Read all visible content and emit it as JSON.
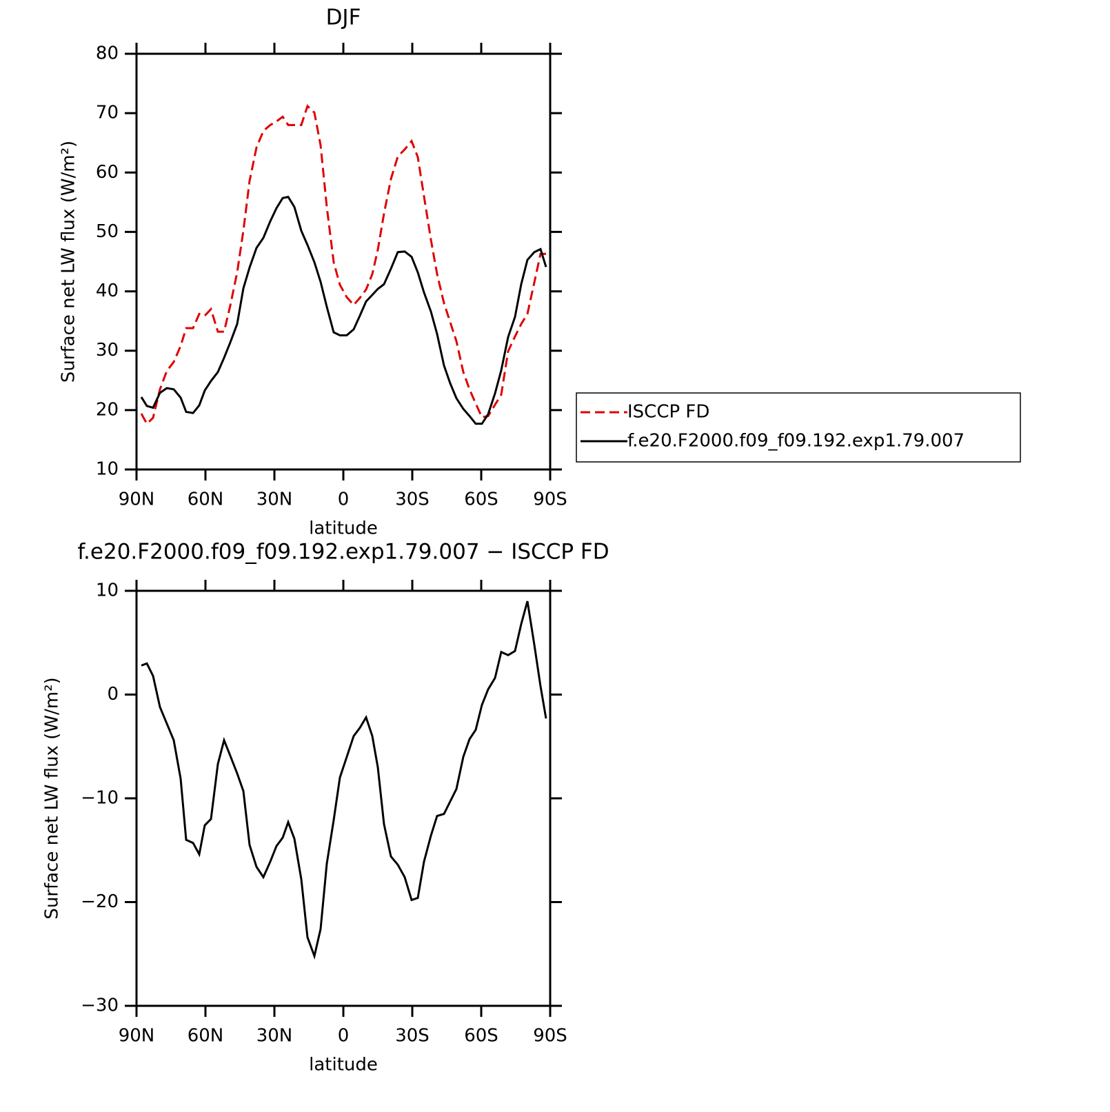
{
  "chart_data": [
    {
      "type": "line",
      "title": "DJF",
      "xlabel": "latitude",
      "ylabel": "Surface net LW flux (W/m²)",
      "x": [
        87.9,
        85.5,
        82.8,
        79.8,
        76.8,
        73.8,
        70.8,
        68.4,
        65.4,
        62.7,
        60.3,
        57.6,
        54.6,
        51.9,
        49.2,
        46.2,
        43.5,
        40.8,
        37.8,
        34.8,
        31.8,
        29.1,
        26.4,
        24.0,
        21.3,
        18.3,
        15.6,
        12.6,
        9.9,
        7.2,
        4.2,
        1.5,
        -1.5,
        -4.5,
        -7.2,
        -9.9,
        -12.6,
        -15.0,
        -17.7,
        -20.7,
        -23.7,
        -26.7,
        -29.7,
        -32.4,
        -35.1,
        -38.1,
        -40.8,
        -43.8,
        -46.5,
        -49.2,
        -52.2,
        -54.9,
        -57.6,
        -60.3,
        -63.0,
        -66.0,
        -68.7,
        -71.7,
        -74.7,
        -77.4,
        -80.1,
        -83.1,
        -85.8,
        -88.2
      ],
      "series": [
        {
          "name": "ISCCP FD",
          "color": "#e00000",
          "dash": true,
          "values": [
            19.4,
            17.7,
            18.7,
            23.5,
            26.6,
            28.1,
            30.8,
            33.8,
            33.8,
            36.2,
            35.9,
            37.0,
            33.2,
            33.2,
            37.6,
            43.2,
            50.2,
            58.6,
            64.2,
            67.0,
            68.0,
            68.6,
            69.4,
            68.0,
            68.0,
            68.0,
            71.2,
            70.1,
            64.6,
            54.2,
            44.9,
            41.1,
            39.0,
            37.7,
            38.9,
            40.3,
            42.9,
            47.0,
            53.1,
            58.9,
            62.7,
            63.9,
            65.3,
            62.6,
            56.0,
            48.7,
            42.9,
            38.0,
            34.8,
            31.6,
            26.4,
            23.5,
            21.1,
            18.8,
            19.0,
            20.9,
            22.6,
            29.9,
            32.4,
            34.5,
            36.2,
            41.5,
            46.3,
            46.3
          ]
        },
        {
          "name": "f.e20.F2000.f09_f09.192.exp1.79.007",
          "color": "#000000",
          "dash": false,
          "values": [
            22.2,
            20.7,
            20.4,
            22.9,
            23.7,
            23.5,
            22.1,
            19.7,
            19.5,
            20.8,
            23.3,
            24.9,
            26.4,
            28.8,
            31.4,
            34.5,
            40.5,
            44.0,
            47.3,
            49.0,
            51.8,
            54.0,
            55.7,
            55.9,
            54.2,
            50.2,
            47.8,
            44.9,
            41.6,
            37.4,
            33.1,
            32.6,
            32.6,
            33.6,
            35.9,
            38.3,
            39.4,
            40.4,
            41.2,
            43.8,
            46.6,
            46.7,
            45.8,
            43.2,
            39.8,
            36.6,
            32.8,
            27.5,
            24.5,
            22.0,
            20.2,
            19.0,
            17.7,
            17.7,
            19.3,
            22.8,
            26.7,
            32.3,
            35.7,
            41.2,
            45.3,
            46.6,
            47.1,
            44.1
          ]
        }
      ],
      "xlim": [
        90,
        -90
      ],
      "xticks": [
        {
          "value": 90,
          "label": "90N"
        },
        {
          "value": 60,
          "label": "60N"
        },
        {
          "value": 30,
          "label": "30N"
        },
        0,
        {
          "value": -30,
          "label": "30S"
        },
        {
          "value": -60,
          "label": "60S"
        },
        {
          "value": -90,
          "label": "90S"
        }
      ],
      "ylim": [
        10,
        80
      ],
      "yticks": [
        10,
        20,
        30,
        40,
        50,
        60,
        70,
        80
      ],
      "legend": "right"
    },
    {
      "type": "line",
      "title": "f.e20.F2000.f09_f09.192.exp1.79.007 − ISCCP FD",
      "xlabel": "latitude",
      "ylabel": "Surface net LW flux (W/m²)",
      "x": [
        87.9,
        85.5,
        82.8,
        79.8,
        76.8,
        73.8,
        70.8,
        68.4,
        65.4,
        62.7,
        60.3,
        57.6,
        54.6,
        51.9,
        49.2,
        46.2,
        43.5,
        40.8,
        37.8,
        34.8,
        31.8,
        29.1,
        26.4,
        24.0,
        21.3,
        18.3,
        15.6,
        12.6,
        9.9,
        7.2,
        4.2,
        1.5,
        -1.5,
        -4.5,
        -7.2,
        -9.9,
        -12.6,
        -15.0,
        -17.7,
        -20.7,
        -23.7,
        -26.7,
        -29.7,
        -32.4,
        -35.1,
        -38.1,
        -40.8,
        -43.8,
        -46.5,
        -49.2,
        -52.2,
        -54.9,
        -57.6,
        -60.3,
        -63.0,
        -66.0,
        -68.7,
        -71.7,
        -74.7,
        -77.4,
        -80.1,
        -83.1,
        -85.8,
        -88.2
      ],
      "series": [
        {
          "color": "#000000",
          "dash": false,
          "values": [
            2.8,
            3.0,
            1.8,
            -1.2,
            -2.8,
            -4.4,
            -8.1,
            -14.0,
            -14.3,
            -15.4,
            -12.6,
            -12.0,
            -6.7,
            -4.4,
            -5.9,
            -7.6,
            -9.3,
            -14.5,
            -16.6,
            -17.6,
            -16.1,
            -14.6,
            -13.8,
            -12.3,
            -13.9,
            -17.8,
            -23.4,
            -25.2,
            -22.6,
            -16.3,
            -12.1,
            -8.0,
            -6.0,
            -4.0,
            -3.2,
            -2.2,
            -4.0,
            -7.0,
            -12.5,
            -15.6,
            -16.4,
            -17.6,
            -19.8,
            -19.6,
            -16.1,
            -13.6,
            -11.7,
            -11.5,
            -10.3,
            -9.1,
            -6.0,
            -4.3,
            -3.4,
            -1.0,
            0.5,
            1.6,
            4.1,
            3.8,
            4.2,
            6.8,
            9.0,
            4.8,
            0.8,
            -2.3
          ]
        }
      ],
      "xlim": [
        90,
        -90
      ],
      "xticks": [
        {
          "value": 90,
          "label": "90N"
        },
        {
          "value": 60,
          "label": "60N"
        },
        {
          "value": 30,
          "label": "30N"
        },
        0,
        {
          "value": -30,
          "label": "30S"
        },
        {
          "value": -60,
          "label": "60S"
        },
        {
          "value": -90,
          "label": "90S"
        }
      ],
      "ylim": [
        -30,
        10
      ],
      "yticks": [
        {
          "value": -30,
          "label": "−30"
        },
        {
          "value": -20,
          "label": "−20"
        },
        {
          "value": -10,
          "label": "−10"
        },
        0,
        10
      ]
    }
  ]
}
